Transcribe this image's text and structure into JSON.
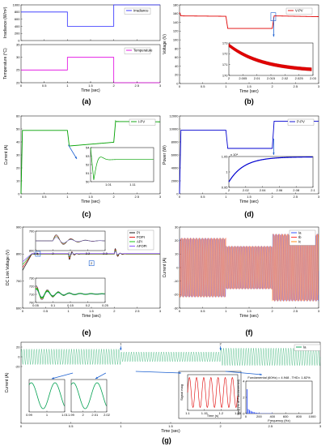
{
  "captions": [
    "(a)",
    "(b)",
    "(c)",
    "(d)",
    "(e)",
    "(f)",
    "(g)"
  ],
  "chart_data": [
    {
      "id": "a",
      "type": "line",
      "subplots": [
        {
          "ylabel": "Irradiance (W/m²)",
          "ylim": [
            0,
            1000
          ],
          "yticks": [
            "0",
            "200",
            "400",
            "600",
            "800",
            "1000"
          ],
          "series": [
            {
              "name": "Irradiance",
              "color": "#2a2aff",
              "x": [
                0,
                1,
                1,
                2,
                2,
                3
              ],
              "y": [
                800,
                800,
                400,
                400,
                1000,
                1000
              ]
            }
          ]
        },
        {
          "ylabel": "Temperature (°C)",
          "xlabel": "Time (sec)",
          "ylim": [
            20,
            35
          ],
          "yticks": [
            "20",
            "25",
            "30",
            "35"
          ],
          "xlim": [
            0,
            3
          ],
          "xticks": [
            "0",
            "0.5",
            "1",
            "1.5",
            "2",
            "2.5",
            "3"
          ],
          "series": [
            {
              "name": "Temperature",
              "color": "#e000e0",
              "x": [
                0,
                1,
                1,
                2,
                2,
                3
              ],
              "y": [
                25,
                25,
                30,
                30,
                20,
                20
              ]
            }
          ]
        }
      ]
    },
    {
      "id": "b",
      "type": "line",
      "ylabel": "Voltage (V)",
      "xlabel": "Time (sec)",
      "xlim": [
        0,
        3
      ],
      "ylim": [
        0,
        200
      ],
      "xticks": [
        "0",
        "0.5",
        "1",
        "1.5",
        "2",
        "2.5",
        "3"
      ],
      "yticks": [
        "0",
        "20",
        "40",
        "60",
        "80",
        "100",
        "120",
        "140",
        "160",
        "180"
      ],
      "series": [
        {
          "name": "V-PV",
          "color": "#e00000",
          "x": [
            0,
            0.02,
            1,
            1.02,
            2,
            2.02,
            3
          ],
          "y": [
            172,
            172,
            171,
            140,
            140,
            172,
            170
          ]
        }
      ],
      "inset": {
        "xticks": [
          "2",
          "2.005",
          "2.01",
          "2.015",
          "2.02",
          "2.025",
          "2.03"
        ],
        "yticks": [
          "170",
          "171",
          "172",
          "173"
        ],
        "x": [
          2,
          2.03
        ],
        "y": [
          172.8,
          170.2
        ]
      }
    },
    {
      "id": "c",
      "type": "line",
      "ylabel": "Current (A)",
      "xlabel": "Time (sec)",
      "xlim": [
        0,
        3
      ],
      "ylim": [
        0,
        70
      ],
      "xticks": [
        "0",
        "0.5",
        "1",
        "1.5",
        "2",
        "2.5",
        "3"
      ],
      "yticks": [
        "0",
        "10",
        "20",
        "30",
        "40",
        "50",
        "60"
      ],
      "series": [
        {
          "name": "I-PV",
          "color": "#00a000",
          "x": [
            0,
            0.02,
            1,
            1.02,
            2,
            2.02,
            3
          ],
          "y": [
            57,
            57,
            57,
            43,
            46,
            65,
            65
          ]
        }
      ],
      "inset": {
        "xticks": [
          "1.01",
          "1.11"
        ],
        "yticks": [
          "50",
          "51",
          "52",
          "53",
          "54"
        ]
      }
    },
    {
      "id": "d",
      "type": "line",
      "ylabel": "Power (W)",
      "xlabel": "Time (sec)",
      "xlim": [
        0,
        3
      ],
      "ylim": [
        0,
        12000
      ],
      "xticks": [
        "0",
        "0.5",
        "1",
        "1.5",
        "2",
        "2.5",
        "3"
      ],
      "yticks": [
        "0",
        "2000",
        "4000",
        "6000",
        "8000",
        "10000",
        "12000"
      ],
      "series": [
        {
          "name": "P-PV",
          "color": "#0000d0",
          "x": [
            0,
            0.02,
            1,
            1.02,
            2,
            2.02,
            3
          ],
          "y": [
            9800,
            9800,
            9800,
            7000,
            7000,
            11200,
            11200
          ]
        }
      ],
      "inset": {
        "exponent": "x 10⁴",
        "xticks": [
          "2",
          "2.02",
          "2.04",
          "2.06",
          "2.08",
          "2.1"
        ],
        "yticks": [
          "0.95",
          "1",
          "1.05"
        ]
      }
    },
    {
      "id": "e",
      "type": "line",
      "ylabel": "DC Link Voltage (V)",
      "xlabel": "Time (sec)",
      "xlim": [
        0,
        3
      ],
      "ylim": [
        600,
        900
      ],
      "xticks": [
        "0",
        "0.5",
        "1",
        "1.5",
        "2",
        "2.5",
        "3"
      ],
      "yticks": [
        "600",
        "700",
        "800",
        "900"
      ],
      "series": [
        {
          "name": "PI",
          "color": "#000000"
        },
        {
          "name": "FOPI",
          "color": "#e00000"
        },
        {
          "name": "API",
          "color": "#00c000"
        },
        {
          "name": "AFOPI",
          "color": "#8040ff"
        }
      ],
      "inset_top": {
        "xticks": [
          "1.9",
          "2",
          "2.1",
          "2.2",
          "2.3"
        ],
        "yticks": [
          "800",
          "700"
        ]
      },
      "inset_bottom": {
        "xticks": [
          "0.05",
          "0.1",
          "0.15",
          "0.2",
          "0.25"
        ],
        "yticks": [
          "700",
          "710",
          "720",
          "730"
        ]
      }
    },
    {
      "id": "f",
      "type": "line",
      "ylabel": "Current (A)",
      "xlabel": "Time (sec)",
      "xlim": [
        0,
        3
      ],
      "ylim": [
        -30,
        30
      ],
      "xticks": [
        "0",
        "0.5",
        "1",
        "1.5",
        "2",
        "2.5",
        "3"
      ],
      "yticks": [
        "-30",
        "-20",
        "-10",
        "0",
        "10",
        "20",
        "30"
      ],
      "series": [
        {
          "name": "Ia",
          "color": "#2040ff"
        },
        {
          "name": "Ib",
          "color": "#ff2020"
        },
        {
          "name": "Ic",
          "color": "#ff8000"
        }
      ],
      "amplitude": [
        {
          "x": [
            0,
            1
          ],
          "a": 22
        },
        {
          "x": [
            1,
            2
          ],
          "a": 16
        },
        {
          "x": [
            2,
            3
          ],
          "a": 25
        }
      ]
    },
    {
      "id": "g",
      "type": "line",
      "ylabel": "Current (A)",
      "xlabel": "Time (sec)",
      "xlim": [
        0,
        3
      ],
      "ylim": [
        -30,
        30
      ],
      "xticks": [
        "0",
        "0.5",
        "1",
        "1.5",
        "2",
        "2.5",
        "3"
      ],
      "yticks": [
        "-20",
        "0",
        "20"
      ],
      "series": [
        {
          "name": "Ia",
          "color": "#00a050"
        }
      ],
      "markers": [
        "1",
        "2"
      ],
      "inset1": {
        "xticks": [
          "0.99",
          "1",
          "1.01"
        ]
      },
      "inset2": {
        "xticks": [
          "1.99",
          "2",
          "2.01",
          "2.02"
        ]
      },
      "inset3": {
        "ylabel": "Signal mag",
        "xlabel": "Time (s)",
        "xticks": [
          "1.1",
          "1.15",
          "1.2",
          "1.25"
        ]
      },
      "inset4": {
        "ylabel": "Mag (% of Fundamental)",
        "xlabel": "Frequency (Hz)",
        "title": "Fundamental (60Hz) = 4.948 , THD= 1.82%",
        "xticks": [
          "0",
          "200",
          "400",
          "600",
          "800",
          "1000"
        ],
        "yticks": [
          "0",
          "2",
          "4"
        ]
      }
    }
  ]
}
